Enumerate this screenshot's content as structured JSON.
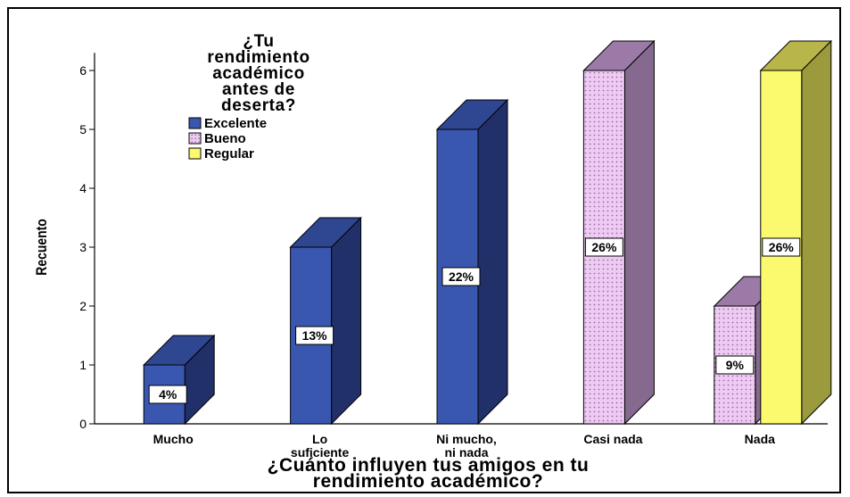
{
  "chart_data": {
    "type": "bar",
    "title": "",
    "xlabel": "¿Cuánto influyen tus amigos en tu rendimiento académico?",
    "xlabel_lines": [
      "¿Cuánto influyen tus amigos en tu",
      "rendimiento académico?"
    ],
    "ylabel": "Recuento",
    "ylim": [
      0,
      6.3
    ],
    "yticks": [
      0,
      1,
      2,
      3,
      4,
      5,
      6
    ],
    "grid": false,
    "legend_placement": "top-left",
    "legend_title": "¿Tu rendimiento académico antes de deserta?",
    "legend_title_lines": [
      "¿Tu",
      "rendimiento",
      "académico",
      "antes de",
      "deserta?"
    ],
    "categories": [
      "Mucho",
      "Lo suficiente",
      "Ni mucho, ni nada",
      "Casi nada",
      "Nada"
    ],
    "category_lines": [
      [
        "Mucho"
      ],
      [
        "Lo",
        "suficiente"
      ],
      [
        "Ni mucho,",
        "ni nada"
      ],
      [
        "Casi nada"
      ],
      [
        "Nada"
      ]
    ],
    "series": [
      {
        "name": "Excelente",
        "color": "#3a57b0",
        "pattern": "solid",
        "values": [
          1,
          3,
          5,
          null,
          null
        ],
        "labels": [
          "4%",
          "13%",
          "22%",
          null,
          null
        ]
      },
      {
        "name": "Bueno",
        "color": "#e9c6ee",
        "pattern": "dotted",
        "values": [
          null,
          null,
          null,
          6,
          2
        ],
        "labels": [
          null,
          null,
          null,
          "26%",
          "9%"
        ]
      },
      {
        "name": "Regular",
        "color": "#fbfa6e",
        "pattern": "solid",
        "values": [
          null,
          null,
          null,
          null,
          6
        ],
        "labels": [
          null,
          null,
          null,
          null,
          "26%"
        ]
      }
    ]
  }
}
